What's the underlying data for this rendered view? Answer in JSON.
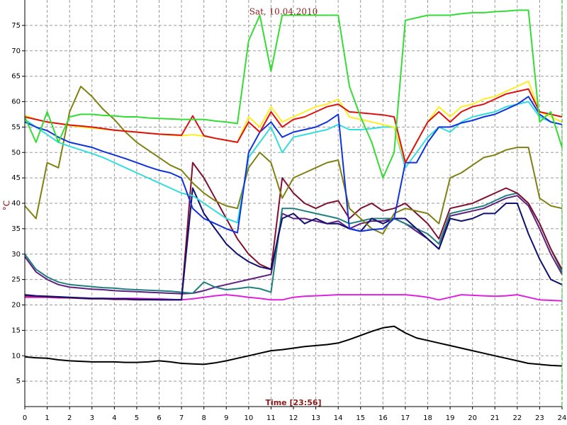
{
  "chart_data": {
    "type": "line",
    "title": "Sat, 10.04.2010",
    "xlabel": "Time [23:56]",
    "ylabel": "°C",
    "grid": true,
    "xlim": [
      0,
      24
    ],
    "ylim": [
      0,
      80
    ],
    "xticks": [
      0,
      1,
      2,
      3,
      4,
      5,
      6,
      7,
      8,
      9,
      10,
      11,
      12,
      13,
      14,
      15,
      16,
      17,
      18,
      19,
      20,
      21,
      22,
      23,
      24
    ],
    "yticks": [
      5,
      10,
      15,
      20,
      25,
      30,
      35,
      40,
      45,
      50,
      55,
      60,
      65,
      70,
      75
    ],
    "x": [
      0,
      0.5,
      1,
      1.5,
      2,
      2.5,
      3,
      3.5,
      4,
      4.5,
      5,
      5.5,
      6,
      6.5,
      7,
      7.5,
      8,
      8.5,
      9,
      9.5,
      10,
      10.5,
      11,
      11.5,
      12,
      12.5,
      13,
      13.5,
      14,
      14.5,
      15,
      15.5,
      16,
      16.5,
      17,
      17.5,
      18,
      18.5,
      19,
      19.5,
      20,
      20.5,
      21,
      21.5,
      22,
      22.5,
      23,
      23.5,
      24
    ],
    "series": [
      {
        "color": "#000000",
        "values": [
          9.8,
          9.6,
          9.5,
          9.2,
          9,
          8.9,
          8.8,
          8.8,
          8.8,
          8.7,
          8.7,
          8.8,
          9,
          8.8,
          8.5,
          8.4,
          8.3,
          8.6,
          9,
          9.5,
          10,
          10.5,
          11,
          11.2,
          11.5,
          11.8,
          12,
          12.2,
          12.5,
          13.2,
          14,
          14.8,
          15.5,
          15.8,
          14.5,
          13.5,
          13,
          12.5,
          12,
          11.5,
          11,
          10.5,
          10,
          9.5,
          9,
          8.5,
          8.3,
          8.1,
          8
        ]
      },
      {
        "color": "#dd22dd",
        "values": [
          21.5,
          21.5,
          21.5,
          21.4,
          21.4,
          21.4,
          21.3,
          21.3,
          21.3,
          21.3,
          21.3,
          21.2,
          21.2,
          21.1,
          21,
          21.2,
          21.5,
          21.8,
          22,
          21.8,
          21.5,
          21.3,
          21,
          21,
          21.5,
          21.7,
          21.8,
          21.9,
          22,
          22,
          22,
          22,
          22,
          22,
          22,
          21.8,
          21.5,
          21,
          21.5,
          22,
          21.9,
          21.8,
          21.7,
          21.8,
          22,
          21.5,
          21,
          20.9,
          20.8
        ]
      },
      {
        "color": "#602080",
        "values": [
          29.5,
          26.5,
          25,
          24,
          23.5,
          23.3,
          23.1,
          23,
          22.8,
          22.7,
          22.6,
          22.5,
          22.4,
          22.3,
          22.2,
          22.3,
          22.8,
          23.5,
          24,
          24.5,
          25,
          25.5,
          26,
          38,
          37,
          37,
          36.5,
          36,
          36.5,
          35,
          36,
          36.5,
          36.5,
          37,
          36,
          34.5,
          33,
          31,
          37.5,
          38,
          38.5,
          39,
          40,
          41,
          41.5,
          39.5,
          35,
          30,
          26
        ]
      },
      {
        "color": "#208080",
        "values": [
          30,
          27,
          25.5,
          24.5,
          24,
          23.8,
          23.6,
          23.4,
          23.3,
          23.1,
          23,
          22.9,
          22.8,
          22.7,
          22.5,
          22.3,
          24.5,
          23.5,
          23,
          23.2,
          23.5,
          23.2,
          22.5,
          39,
          39,
          38.5,
          38,
          37.5,
          37,
          36,
          36.5,
          37,
          37,
          37,
          36,
          35,
          34,
          32,
          38,
          38.5,
          39,
          39.5,
          40.5,
          41.5,
          42,
          40,
          36,
          31,
          26.5
        ]
      },
      {
        "color": "#801030",
        "values": [
          21.8,
          21.7,
          21.6,
          21.5,
          21.4,
          21.3,
          21.2,
          21.2,
          21.1,
          21.1,
          21,
          21,
          21,
          21,
          21,
          48,
          45,
          41,
          37,
          33,
          30,
          28,
          27,
          45,
          42,
          40,
          39,
          40,
          40.5,
          37,
          39,
          40,
          38.5,
          39,
          40,
          38,
          36,
          33,
          39,
          39.5,
          40,
          41,
          42,
          43,
          42,
          40,
          36,
          31,
          27
        ]
      },
      {
        "color": "#101070",
        "values": [
          22,
          21.8,
          21.7,
          21.6,
          21.5,
          21.4,
          21.3,
          21.3,
          21.2,
          21.2,
          21.1,
          21.1,
          21,
          21,
          21,
          43,
          38,
          35,
          32,
          30,
          28.5,
          27.5,
          27,
          37,
          38,
          36,
          37,
          36,
          36,
          35,
          34.5,
          37,
          36,
          37,
          37,
          35,
          33,
          31,
          37,
          36.5,
          37,
          38,
          38,
          40,
          40,
          34,
          29,
          25,
          24
        ]
      },
      {
        "color": "#808010",
        "values": [
          39.5,
          37,
          48,
          47,
          58,
          63,
          61,
          58.5,
          56.5,
          54,
          52,
          50.5,
          49,
          47.5,
          46.5,
          44,
          42,
          40.5,
          39.5,
          39,
          47,
          50,
          48,
          41,
          45,
          46,
          47,
          48,
          48.5,
          39,
          37,
          35,
          34,
          38,
          39,
          38.5,
          38,
          36,
          45,
          46,
          47.5,
          49,
          49.5,
          50.5,
          51,
          51,
          41,
          39.5,
          39
        ]
      },
      {
        "color": "#33dddd",
        "values": [
          56.5,
          55,
          53.5,
          52,
          51.2,
          50.5,
          49.8,
          49,
          48,
          47,
          46,
          45,
          44,
          43,
          42,
          41.5,
          40,
          38.5,
          37,
          36.2,
          49,
          52,
          55,
          50,
          53,
          53.5,
          54,
          54.5,
          55.5,
          54.5,
          54.5,
          54.7,
          55,
          55,
          47,
          50,
          53,
          55,
          54,
          56,
          57,
          57.5,
          58,
          59,
          59.5,
          60,
          57,
          56,
          55.5
        ]
      },
      {
        "color": "#1133dd",
        "values": [
          56,
          55,
          54.3,
          53,
          52,
          51.5,
          51,
          50.2,
          49.5,
          48.8,
          48,
          47.2,
          46.5,
          46,
          45,
          39,
          37,
          36,
          35,
          34.2,
          50,
          54,
          56,
          53,
          54,
          54.5,
          55,
          56,
          57.5,
          35,
          34.5,
          34.8,
          35,
          37,
          48,
          48,
          52,
          55,
          55,
          55.8,
          56.3,
          57,
          57.5,
          58.5,
          59.5,
          61,
          57.5,
          56,
          55.5
        ]
      },
      {
        "color": "#ffee22",
        "values": [
          57.3,
          56.5,
          56,
          55.7,
          55.3,
          55,
          54.8,
          54.6,
          54.4,
          54.2,
          54,
          53.8,
          53.6,
          53.4,
          53.3,
          53.5,
          53.2,
          52.8,
          52.4,
          52,
          57,
          55,
          59,
          56,
          57,
          58,
          59,
          59.5,
          60.5,
          57,
          56.5,
          56,
          55.5,
          55,
          48,
          52,
          56,
          59,
          57,
          59,
          59.5,
          60.5,
          61,
          62,
          63,
          64,
          58,
          57,
          56
        ]
      },
      {
        "color": "#dd1111",
        "values": [
          57,
          56.5,
          56,
          55.7,
          55.4,
          55.2,
          55,
          54.7,
          54.4,
          54.2,
          54,
          53.8,
          53.6,
          53.5,
          53.4,
          57.2,
          53.3,
          52.8,
          52.4,
          52,
          56,
          54,
          58,
          55,
          56.5,
          57,
          58,
          59,
          59.5,
          58,
          57.8,
          57.6,
          57.4,
          57,
          48,
          52,
          56,
          58,
          56,
          58,
          59,
          59.5,
          60.5,
          61.5,
          62,
          62.5,
          58,
          57.5,
          57
        ]
      },
      {
        "color": "#33dd33",
        "values": [
          57,
          52,
          58,
          52,
          57,
          57.5,
          57.5,
          57.3,
          57.2,
          57,
          57,
          56.8,
          56.7,
          56.6,
          56.5,
          56.5,
          56.5,
          56.2,
          56,
          55.7,
          72,
          77,
          66,
          77,
          77,
          77,
          77,
          77,
          77,
          63,
          57,
          52,
          45,
          50,
          76,
          76.5,
          77,
          77,
          77,
          77.3,
          77.5,
          77.5,
          77.7,
          77.8,
          78,
          78,
          56,
          58,
          51
        ]
      }
    ]
  }
}
